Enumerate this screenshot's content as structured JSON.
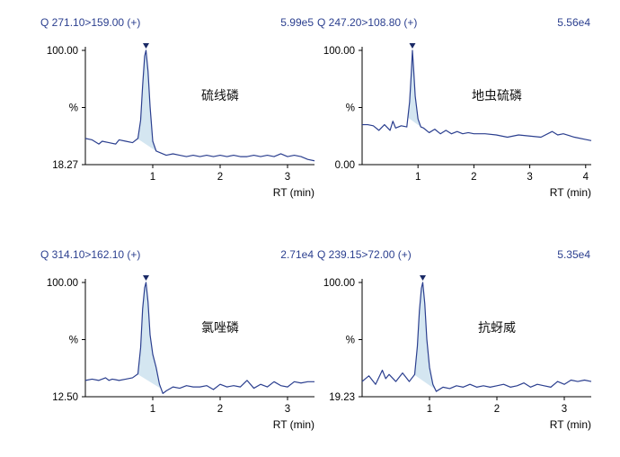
{
  "chart_data": [
    {
      "type": "line",
      "transition": "Q 271.10>159.00 (+)",
      "intensity": "5.99e5",
      "compound": "硫线磷",
      "xlabel": "RT (min)",
      "ylabel": "%",
      "ytick_labels": [
        "100.00",
        "%",
        "18.27"
      ],
      "xticks": [
        1,
        2,
        3
      ],
      "xlim": [
        0,
        3.4
      ],
      "ylim": [
        18.27,
        100
      ],
      "series": [
        {
          "x": [
            0.0,
            0.1,
            0.2,
            0.25,
            0.35,
            0.45,
            0.5,
            0.6,
            0.7,
            0.78,
            0.82,
            0.85,
            0.88,
            0.9,
            0.93,
            0.96,
            1.0,
            1.05,
            1.1,
            1.2,
            1.3,
            1.4,
            1.5,
            1.6,
            1.7,
            1.8,
            1.9,
            2.0,
            2.1,
            2.2,
            2.3,
            2.4,
            2.5,
            2.6,
            2.7,
            2.8,
            2.9,
            3.0,
            3.1,
            3.2,
            3.3,
            3.4
          ],
          "y": [
            37,
            36,
            33,
            35,
            34,
            33,
            36,
            35,
            34,
            37,
            50,
            75,
            96,
            100,
            85,
            60,
            35,
            28,
            27,
            25,
            26,
            25,
            24,
            25,
            24,
            25,
            24,
            25,
            24,
            25,
            24,
            24,
            25,
            24,
            25,
            24,
            26,
            24,
            25,
            24,
            22,
            21
          ]
        }
      ],
      "peak": {
        "start": 0.78,
        "apex": 0.9,
        "end": 1.08
      }
    },
    {
      "type": "line",
      "transition": "Q 247.20>108.80 (+)",
      "intensity": "5.56e4",
      "compound": "地虫硫磷",
      "xlabel": "RT (min)",
      "ylabel": "%",
      "ytick_labels": [
        "100.00",
        "%",
        "0.00"
      ],
      "xticks": [
        1,
        2,
        3,
        4
      ],
      "xlim": [
        0,
        4.1
      ],
      "ylim": [
        0,
        100
      ],
      "series": [
        {
          "x": [
            0.0,
            0.1,
            0.2,
            0.3,
            0.4,
            0.5,
            0.55,
            0.6,
            0.7,
            0.8,
            0.85,
            0.88,
            0.9,
            0.92,
            0.95,
            1.0,
            1.05,
            1.1,
            1.2,
            1.3,
            1.4,
            1.5,
            1.6,
            1.7,
            1.8,
            1.9,
            2.0,
            2.2,
            2.4,
            2.6,
            2.8,
            3.0,
            3.2,
            3.4,
            3.5,
            3.6,
            3.8,
            4.0,
            4.1
          ],
          "y": [
            35,
            35,
            34,
            30,
            35,
            30,
            38,
            32,
            34,
            33,
            55,
            80,
            100,
            85,
            60,
            40,
            33,
            32,
            28,
            31,
            27,
            30,
            27,
            29,
            27,
            28,
            27,
            27,
            26,
            24,
            26,
            25,
            24,
            29,
            26,
            27,
            24,
            22,
            21
          ]
        }
      ],
      "peak": {
        "start": 0.82,
        "apex": 0.9,
        "end": 1.08
      }
    },
    {
      "type": "line",
      "transition": "Q 314.10>162.10 (+)",
      "intensity": "2.71e4",
      "compound": "氯唑磷",
      "xlabel": "RT (min)",
      "ylabel": "%",
      "ytick_labels": [
        "100.00",
        "%",
        "12.50"
      ],
      "xticks": [
        1,
        2,
        3
      ],
      "xlim": [
        0,
        3.4
      ],
      "ylim": [
        12.5,
        100
      ],
      "series": [
        {
          "x": [
            0.0,
            0.1,
            0.2,
            0.3,
            0.35,
            0.4,
            0.5,
            0.6,
            0.7,
            0.78,
            0.82,
            0.85,
            0.88,
            0.9,
            0.93,
            0.96,
            1.0,
            1.05,
            1.1,
            1.15,
            1.2,
            1.3,
            1.4,
            1.5,
            1.6,
            1.7,
            1.8,
            1.9,
            2.0,
            2.1,
            2.2,
            2.3,
            2.4,
            2.5,
            2.6,
            2.7,
            2.8,
            2.9,
            3.0,
            3.1,
            3.2,
            3.3,
            3.4
          ],
          "y": [
            25,
            26,
            25,
            27,
            25,
            26,
            25,
            26,
            27,
            30,
            50,
            80,
            96,
            100,
            85,
            60,
            45,
            35,
            22,
            15,
            17,
            20,
            19,
            21,
            20,
            20,
            21,
            18,
            22,
            20,
            21,
            20,
            25,
            19,
            22,
            20,
            24,
            21,
            20,
            24,
            23,
            24,
            24
          ]
        }
      ],
      "peak": {
        "start": 0.78,
        "apex": 0.9,
        "end": 1.12
      }
    },
    {
      "type": "line",
      "transition": "Q 239.15>72.00 (+)",
      "intensity": "5.35e4",
      "compound": "抗蚜威",
      "xlabel": "RT (min)",
      "ylabel": "%",
      "ytick_labels": [
        "100.00",
        "%",
        "19.23"
      ],
      "xticks": [
        1,
        2,
        3
      ],
      "xlim": [
        0,
        3.4
      ],
      "ylim": [
        19.23,
        100
      ],
      "series": [
        {
          "x": [
            0.0,
            0.1,
            0.2,
            0.3,
            0.35,
            0.4,
            0.5,
            0.6,
            0.7,
            0.78,
            0.82,
            0.85,
            0.88,
            0.9,
            0.93,
            0.96,
            1.0,
            1.05,
            1.1,
            1.2,
            1.3,
            1.4,
            1.5,
            1.6,
            1.7,
            1.8,
            1.9,
            2.0,
            2.1,
            2.2,
            2.3,
            2.4,
            2.5,
            2.6,
            2.7,
            2.8,
            2.9,
            3.0,
            3.1,
            3.2,
            3.3,
            3.4
          ],
          "y": [
            30,
            34,
            28,
            38,
            32,
            35,
            30,
            36,
            30,
            35,
            55,
            80,
            96,
            100,
            85,
            60,
            40,
            28,
            23,
            26,
            25,
            27,
            26,
            28,
            26,
            27,
            26,
            27,
            28,
            26,
            27,
            29,
            26,
            28,
            27,
            26,
            30,
            28,
            31,
            30,
            31,
            30
          ]
        }
      ],
      "peak": {
        "start": 0.78,
        "apex": 0.9,
        "end": 1.08
      }
    }
  ],
  "colors": {
    "trace": "#2b3f8f",
    "header": "#2b3f8f",
    "peak_fill": "#d4e6f1",
    "apex_marker": "#1a2a66"
  }
}
